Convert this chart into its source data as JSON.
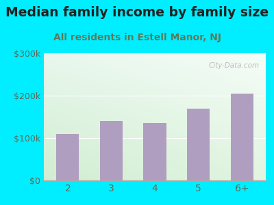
{
  "title": "Median family income by family size",
  "subtitle": "All residents in Estell Manor, NJ",
  "categories": [
    "2",
    "3",
    "4",
    "5",
    "6+"
  ],
  "values": [
    110000,
    140000,
    135000,
    170000,
    205000
  ],
  "bar_color": "#b09ec0",
  "ylim": [
    0,
    300000
  ],
  "yticks": [
    0,
    100000,
    200000,
    300000
  ],
  "ytick_labels": [
    "$0",
    "$100k",
    "$200k",
    "$300k"
  ],
  "background_outer": "#00eeff",
  "title_color": "#222222",
  "subtitle_color": "#5a7a5a",
  "tick_color": "#5a6a5a",
  "watermark": "City-Data.com",
  "title_fontsize": 13.5,
  "subtitle_fontsize": 10,
  "grad_top_left": "#e8f5ee",
  "grad_top_right": "#f5faf8",
  "grad_bottom_left": "#d0e8d0",
  "grad_bottom_right": "#e0f0e5"
}
